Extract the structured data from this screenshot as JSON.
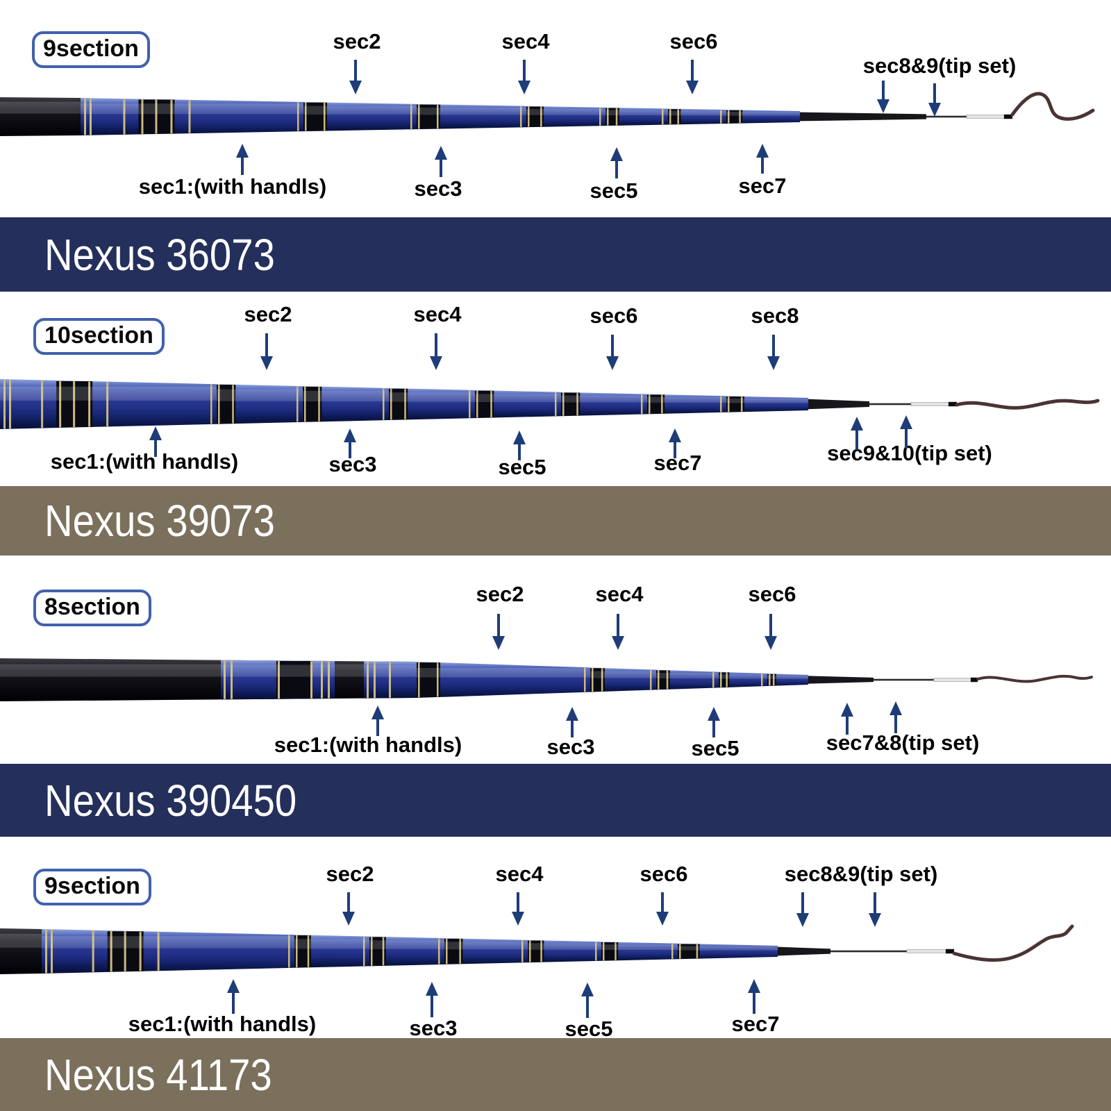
{
  "colors": {
    "arrow": "#1e3d78",
    "badge_border": "#4161ae",
    "navy_banner": "#242f5b",
    "taupe_banner": "#7a705c",
    "rod_blue": "#27368f",
    "rod_gold": "#c9b97e",
    "banner_text": "#ffffff",
    "label_text": "#000000"
  },
  "panels": [
    {
      "badge": "9section",
      "model": "Nexus 36073",
      "banner_color": "#242f5b",
      "top_labels": [
        "sec2",
        "sec4",
        "sec6",
        "sec8&9(tip set)"
      ],
      "bottom_labels": [
        "sec1:(with handls)",
        "sec3",
        "sec5",
        "sec7"
      ]
    },
    {
      "badge": "10section",
      "model": "Nexus 39073",
      "banner_color": "#7a705c",
      "top_labels": [
        "sec2",
        "sec4",
        "sec6",
        "sec8"
      ],
      "bottom_labels": [
        "sec1:(with handls)",
        "sec3",
        "sec5",
        "sec7",
        "sec9&10(tip set)"
      ]
    },
    {
      "badge": "8section",
      "model": "Nexus 390450",
      "banner_color": "#242f5b",
      "top_labels": [
        "sec2",
        "sec4",
        "sec6"
      ],
      "bottom_labels": [
        "sec1:(with handls)",
        "sec3",
        "sec5",
        "sec7&8(tip set)"
      ]
    },
    {
      "badge": "9section",
      "model": "Nexus 41173",
      "banner_color": "#7a705c",
      "top_labels": [
        "sec2",
        "sec4",
        "sec6",
        "sec8&9(tip set)"
      ],
      "bottom_labels": [
        "sec1:(with handls)",
        "sec3",
        "sec5",
        "sec7"
      ]
    }
  ]
}
